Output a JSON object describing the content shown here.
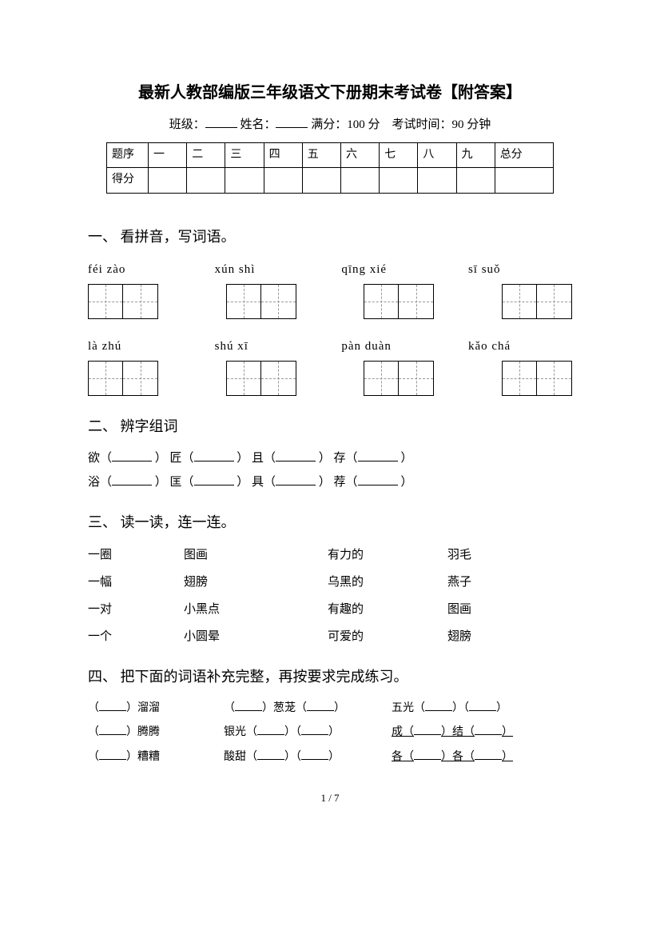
{
  "title": "最新人教部编版三年级语文下册期末考试卷【附答案】",
  "meta": {
    "class_label": "班级：",
    "name_label": "姓名：",
    "full_label": "满分：",
    "full_value": "100 分",
    "time_label": "考试时间：",
    "time_value": "90 分钟"
  },
  "score_table": {
    "row1_label": "题序",
    "cols": [
      "一",
      "二",
      "三",
      "四",
      "五",
      "六",
      "七",
      "八",
      "九",
      "总分"
    ],
    "row2_label": "得分"
  },
  "q1": {
    "heading": "一、 看拼音，写词语。",
    "pinyin_rows": [
      [
        "féi   zào",
        "xún  shì",
        "qīng  xié",
        "sī   suǒ"
      ],
      [
        "là    zhú",
        "shú  xī",
        "pàn  duàn",
        "kǎo  chá"
      ]
    ]
  },
  "q2": {
    "heading": "二、 辨字组词",
    "lines": [
      [
        "欲（",
        "）  匠（",
        "）  且（",
        "）  存（",
        "）"
      ],
      [
        "浴（",
        "）  匡（",
        "）  具（",
        "）  荐（",
        "）"
      ]
    ]
  },
  "q3": {
    "heading": "三、 读一读，连一连。",
    "rows": [
      [
        "一圈",
        "图画",
        "有力的",
        "羽毛"
      ],
      [
        "一幅",
        "翅膀",
        "乌黑的",
        "燕子"
      ],
      [
        "一对",
        "小黑点",
        "有趣的",
        "图画"
      ],
      [
        "一个",
        "小圆晕",
        "可爱的",
        "翅膀"
      ]
    ]
  },
  "q4": {
    "heading": "四、 把下面的词语补充完整，再按要求完成练习。",
    "rows": [
      {
        "c1_suffix": "）溜溜",
        "c2_mid": "）葱茏（",
        "c3_prefix": "五光（",
        "c3_mid": "）（",
        "c3_underline": false
      },
      {
        "c1_suffix": "）腾腾",
        "c2_prefix": "银光（",
        "c2_mid": "）（",
        "c3_prefix": "成（",
        "c3_mid": "）结（",
        "c3_underline": true
      },
      {
        "c1_suffix": "）糟糟",
        "c2_prefix": "酸甜（",
        "c2_mid": "）（",
        "c3_prefix": "各（",
        "c3_mid": "）各（",
        "c3_underline": true
      }
    ]
  },
  "page_number": "1 / 7"
}
